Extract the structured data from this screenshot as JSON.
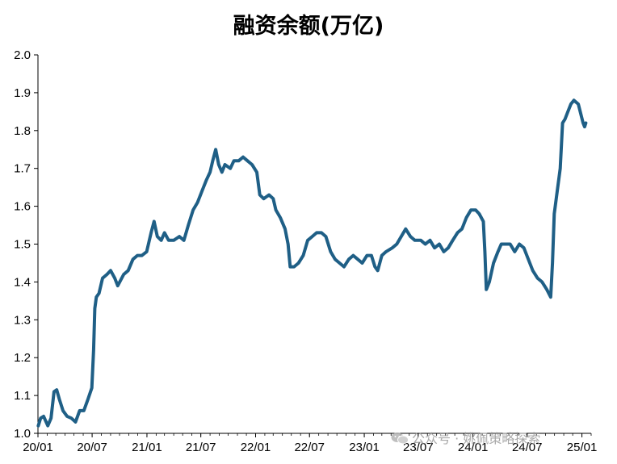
{
  "chart_data": {
    "type": "line",
    "title": "融资余额(万亿)",
    "xlabel": "",
    "ylabel": "",
    "ylim": [
      1.0,
      2.0
    ],
    "yticks": [
      "1.0",
      "1.1",
      "1.2",
      "1.3",
      "1.4",
      "1.5",
      "1.6",
      "1.7",
      "1.8",
      "1.9",
      "2.0"
    ],
    "xticks": [
      "20/01",
      "20/07",
      "21/01",
      "21/07",
      "22/01",
      "22/07",
      "23/01",
      "23/07",
      "24/01",
      "24/07",
      "25/01"
    ],
    "line_color": "#1f5f86",
    "grid": false,
    "series": [
      {
        "values": [
          [
            "2020-01-02",
            1.02
          ],
          [
            "2020-01-10",
            1.04
          ],
          [
            "2020-01-20",
            1.045
          ],
          [
            "2020-02-03",
            1.02
          ],
          [
            "2020-02-14",
            1.04
          ],
          [
            "2020-02-24",
            1.11
          ],
          [
            "2020-03-04",
            1.115
          ],
          [
            "2020-03-13",
            1.09
          ],
          [
            "2020-03-25",
            1.06
          ],
          [
            "2020-04-08",
            1.045
          ],
          [
            "2020-04-22",
            1.04
          ],
          [
            "2020-05-06",
            1.03
          ],
          [
            "2020-05-20",
            1.06
          ],
          [
            "2020-06-03",
            1.06
          ],
          [
            "2020-06-17",
            1.09
          ],
          [
            "2020-06-30",
            1.12
          ],
          [
            "2020-07-06",
            1.22
          ],
          [
            "2020-07-10",
            1.33
          ],
          [
            "2020-07-15",
            1.36
          ],
          [
            "2020-07-24",
            1.37
          ],
          [
            "2020-08-05",
            1.41
          ],
          [
            "2020-08-20",
            1.42
          ],
          [
            "2020-09-01",
            1.43
          ],
          [
            "2020-09-15",
            1.41
          ],
          [
            "2020-09-25",
            1.39
          ],
          [
            "2020-10-15",
            1.42
          ],
          [
            "2020-10-30",
            1.43
          ],
          [
            "2020-11-15",
            1.46
          ],
          [
            "2020-11-30",
            1.47
          ],
          [
            "2020-12-15",
            1.47
          ],
          [
            "2020-12-31",
            1.48
          ],
          [
            "2021-01-15",
            1.53
          ],
          [
            "2021-01-25",
            1.56
          ],
          [
            "2021-02-05",
            1.52
          ],
          [
            "2021-02-18",
            1.51
          ],
          [
            "2021-03-01",
            1.53
          ],
          [
            "2021-03-15",
            1.51
          ],
          [
            "2021-04-01",
            1.51
          ],
          [
            "2021-04-20",
            1.52
          ],
          [
            "2021-05-05",
            1.51
          ],
          [
            "2021-05-20",
            1.55
          ],
          [
            "2021-06-05",
            1.59
          ],
          [
            "2021-06-20",
            1.61
          ],
          [
            "2021-07-05",
            1.64
          ],
          [
            "2021-07-20",
            1.67
          ],
          [
            "2021-08-01",
            1.69
          ],
          [
            "2021-08-10",
            1.72
          ],
          [
            "2021-08-20",
            1.75
          ],
          [
            "2021-08-30",
            1.71
          ],
          [
            "2021-09-10",
            1.69
          ],
          [
            "2021-09-20",
            1.71
          ],
          [
            "2021-10-08",
            1.7
          ],
          [
            "2021-10-20",
            1.72
          ],
          [
            "2021-11-05",
            1.72
          ],
          [
            "2021-11-20",
            1.73
          ],
          [
            "2021-12-05",
            1.72
          ],
          [
            "2021-12-20",
            1.71
          ],
          [
            "2022-01-05",
            1.69
          ],
          [
            "2022-01-15",
            1.63
          ],
          [
            "2022-01-28",
            1.62
          ],
          [
            "2022-02-15",
            1.63
          ],
          [
            "2022-03-01",
            1.62
          ],
          [
            "2022-03-10",
            1.59
          ],
          [
            "2022-03-25",
            1.57
          ],
          [
            "2022-04-10",
            1.54
          ],
          [
            "2022-04-20",
            1.5
          ],
          [
            "2022-04-27",
            1.44
          ],
          [
            "2022-05-10",
            1.44
          ],
          [
            "2022-05-25",
            1.45
          ],
          [
            "2022-06-10",
            1.47
          ],
          [
            "2022-06-25",
            1.51
          ],
          [
            "2022-07-10",
            1.52
          ],
          [
            "2022-07-25",
            1.53
          ],
          [
            "2022-08-10",
            1.53
          ],
          [
            "2022-08-25",
            1.52
          ],
          [
            "2022-09-10",
            1.48
          ],
          [
            "2022-09-25",
            1.46
          ],
          [
            "2022-10-10",
            1.45
          ],
          [
            "2022-10-25",
            1.44
          ],
          [
            "2022-11-10",
            1.46
          ],
          [
            "2022-11-25",
            1.47
          ],
          [
            "2022-12-10",
            1.46
          ],
          [
            "2022-12-25",
            1.45
          ],
          [
            "2023-01-10",
            1.47
          ],
          [
            "2023-01-25",
            1.47
          ],
          [
            "2023-02-06",
            1.44
          ],
          [
            "2023-02-15",
            1.43
          ],
          [
            "2023-03-01",
            1.47
          ],
          [
            "2023-03-15",
            1.48
          ],
          [
            "2023-04-05",
            1.49
          ],
          [
            "2023-04-20",
            1.5
          ],
          [
            "2023-05-05",
            1.52
          ],
          [
            "2023-05-20",
            1.54
          ],
          [
            "2023-06-05",
            1.52
          ],
          [
            "2023-06-20",
            1.51
          ],
          [
            "2023-07-10",
            1.51
          ],
          [
            "2023-07-25",
            1.5
          ],
          [
            "2023-08-10",
            1.51
          ],
          [
            "2023-08-25",
            1.49
          ],
          [
            "2023-09-10",
            1.5
          ],
          [
            "2023-09-25",
            1.48
          ],
          [
            "2023-10-10",
            1.49
          ],
          [
            "2023-10-25",
            1.51
          ],
          [
            "2023-11-10",
            1.53
          ],
          [
            "2023-11-25",
            1.54
          ],
          [
            "2023-12-10",
            1.57
          ],
          [
            "2023-12-25",
            1.59
          ],
          [
            "2024-01-10",
            1.59
          ],
          [
            "2024-01-22",
            1.58
          ],
          [
            "2024-02-05",
            1.56
          ],
          [
            "2024-02-10",
            1.48
          ],
          [
            "2024-02-15",
            1.38
          ],
          [
            "2024-02-25",
            1.4
          ],
          [
            "2024-03-10",
            1.45
          ],
          [
            "2024-03-25",
            1.48
          ],
          [
            "2024-04-05",
            1.5
          ],
          [
            "2024-04-20",
            1.5
          ],
          [
            "2024-05-05",
            1.5
          ],
          [
            "2024-05-20",
            1.48
          ],
          [
            "2024-06-05",
            1.5
          ],
          [
            "2024-06-20",
            1.49
          ],
          [
            "2024-07-05",
            1.46
          ],
          [
            "2024-07-20",
            1.43
          ],
          [
            "2024-08-05",
            1.41
          ],
          [
            "2024-08-20",
            1.4
          ],
          [
            "2024-09-05",
            1.38
          ],
          [
            "2024-09-18",
            1.36
          ],
          [
            "2024-09-24",
            1.45
          ],
          [
            "2024-09-30",
            1.58
          ],
          [
            "2024-10-10",
            1.64
          ],
          [
            "2024-10-20",
            1.7
          ],
          [
            "2024-10-28",
            1.82
          ],
          [
            "2024-11-05",
            1.83
          ],
          [
            "2024-11-15",
            1.85
          ],
          [
            "2024-11-25",
            1.87
          ],
          [
            "2024-12-05",
            1.88
          ],
          [
            "2024-12-20",
            1.87
          ],
          [
            "2025-01-05",
            1.82
          ],
          [
            "2025-01-10",
            1.81
          ],
          [
            "2025-01-14",
            1.82
          ]
        ]
      }
    ]
  },
  "watermark": {
    "text": "公众号 · 姚佩策略探索",
    "icon": "wechat-icon"
  }
}
